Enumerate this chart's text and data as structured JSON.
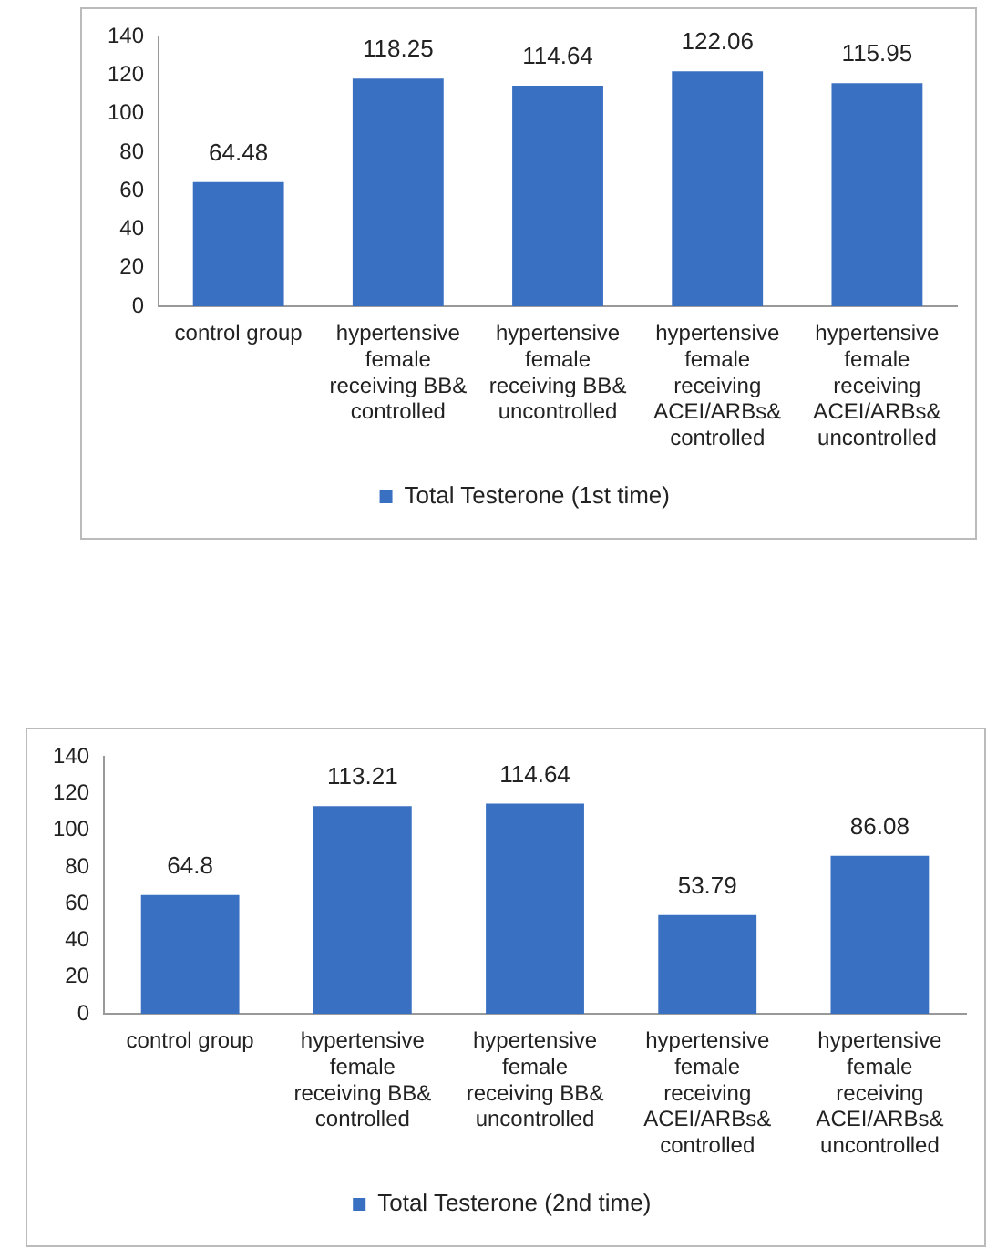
{
  "chart_data": [
    {
      "type": "bar",
      "categories": [
        "control group",
        "hypertensive female receiving BB& controlled",
        "hypertensive female receiving BB& uncontrolled",
        "hypertensive female receiving ACEI/ARBs& controlled",
        "hypertensive female receiving ACEI/ARBs& uncontrolled"
      ],
      "series": [
        {
          "name": "Total Testerone (1st time)",
          "color": "#3a70c2",
          "values": [
            64.48,
            118.25,
            114.64,
            122.06,
            115.95
          ]
        }
      ],
      "ylim": [
        0,
        140
      ],
      "yticks": [
        0,
        20,
        40,
        60,
        80,
        100,
        120,
        140
      ],
      "grid": false,
      "legend": "bottom",
      "data_labels": true
    },
    {
      "type": "bar",
      "categories": [
        "control group",
        "hypertensive female receiving BB& controlled",
        "hypertensive female receiving BB& uncontrolled",
        "hypertensive female receiving ACEI/ARBs& controlled",
        "hypertensive female receiving ACEI/ARBs& uncontrolled"
      ],
      "series": [
        {
          "name": "Total Testerone (2nd time)",
          "color": "#3a70c2",
          "values": [
            64.8,
            113.21,
            114.64,
            53.79,
            86.08
          ]
        }
      ],
      "ylim": [
        0,
        140
      ],
      "yticks": [
        0,
        20,
        40,
        60,
        80,
        100,
        120,
        140
      ],
      "grid": false,
      "legend": "bottom",
      "data_labels": true
    }
  ]
}
